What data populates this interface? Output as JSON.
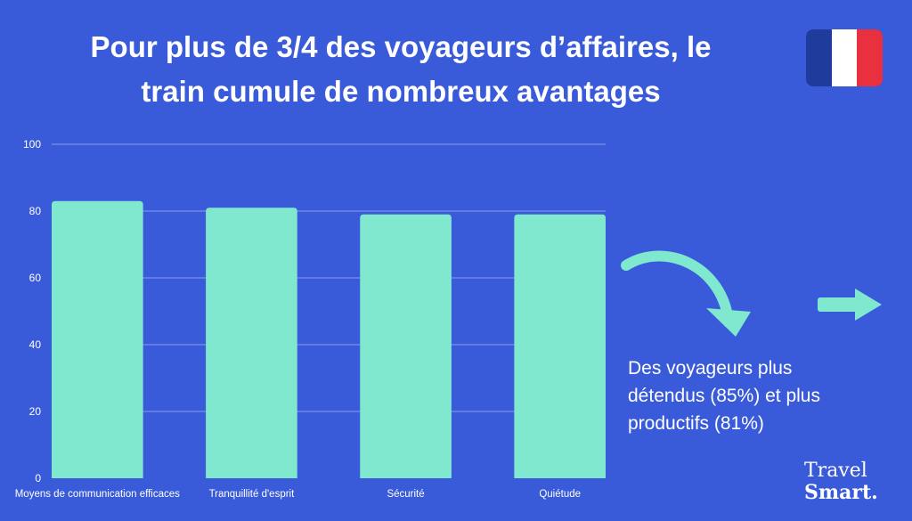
{
  "header": {
    "title_line1": "Pour plus de 3/4 des voyageurs d’affaires, le",
    "title_line2": "train cumule de nombreux avantages"
  },
  "flag": {
    "colors": [
      "#1f3b9c",
      "#ffffff",
      "#e8303e"
    ]
  },
  "note": {
    "line1": "Des voyageurs plus",
    "line2": "détendus (85%) et plus",
    "line3": "productifs (81%)"
  },
  "brand": {
    "line1": "Travel",
    "line2": "Smart."
  },
  "decoration": {
    "curved_arrow": "curved-arrow-icon",
    "right_arrow": "arrow-right-icon"
  },
  "colors": {
    "background": "#3a5bd9",
    "bar": "#7fe8cf",
    "grid": "#6f86e6",
    "text": "#ffffff"
  },
  "chart_data": {
    "type": "bar",
    "categories": [
      "Moyens de communication efficaces",
      "Tranquillité d'esprit",
      "Sécurité",
      "Quiétude"
    ],
    "values": [
      83,
      81,
      79,
      79
    ],
    "yticks": [
      0,
      20,
      40,
      60,
      80,
      100
    ],
    "ylim": [
      0,
      100
    ],
    "grid": true,
    "title": "",
    "xlabel": "",
    "ylabel": ""
  }
}
